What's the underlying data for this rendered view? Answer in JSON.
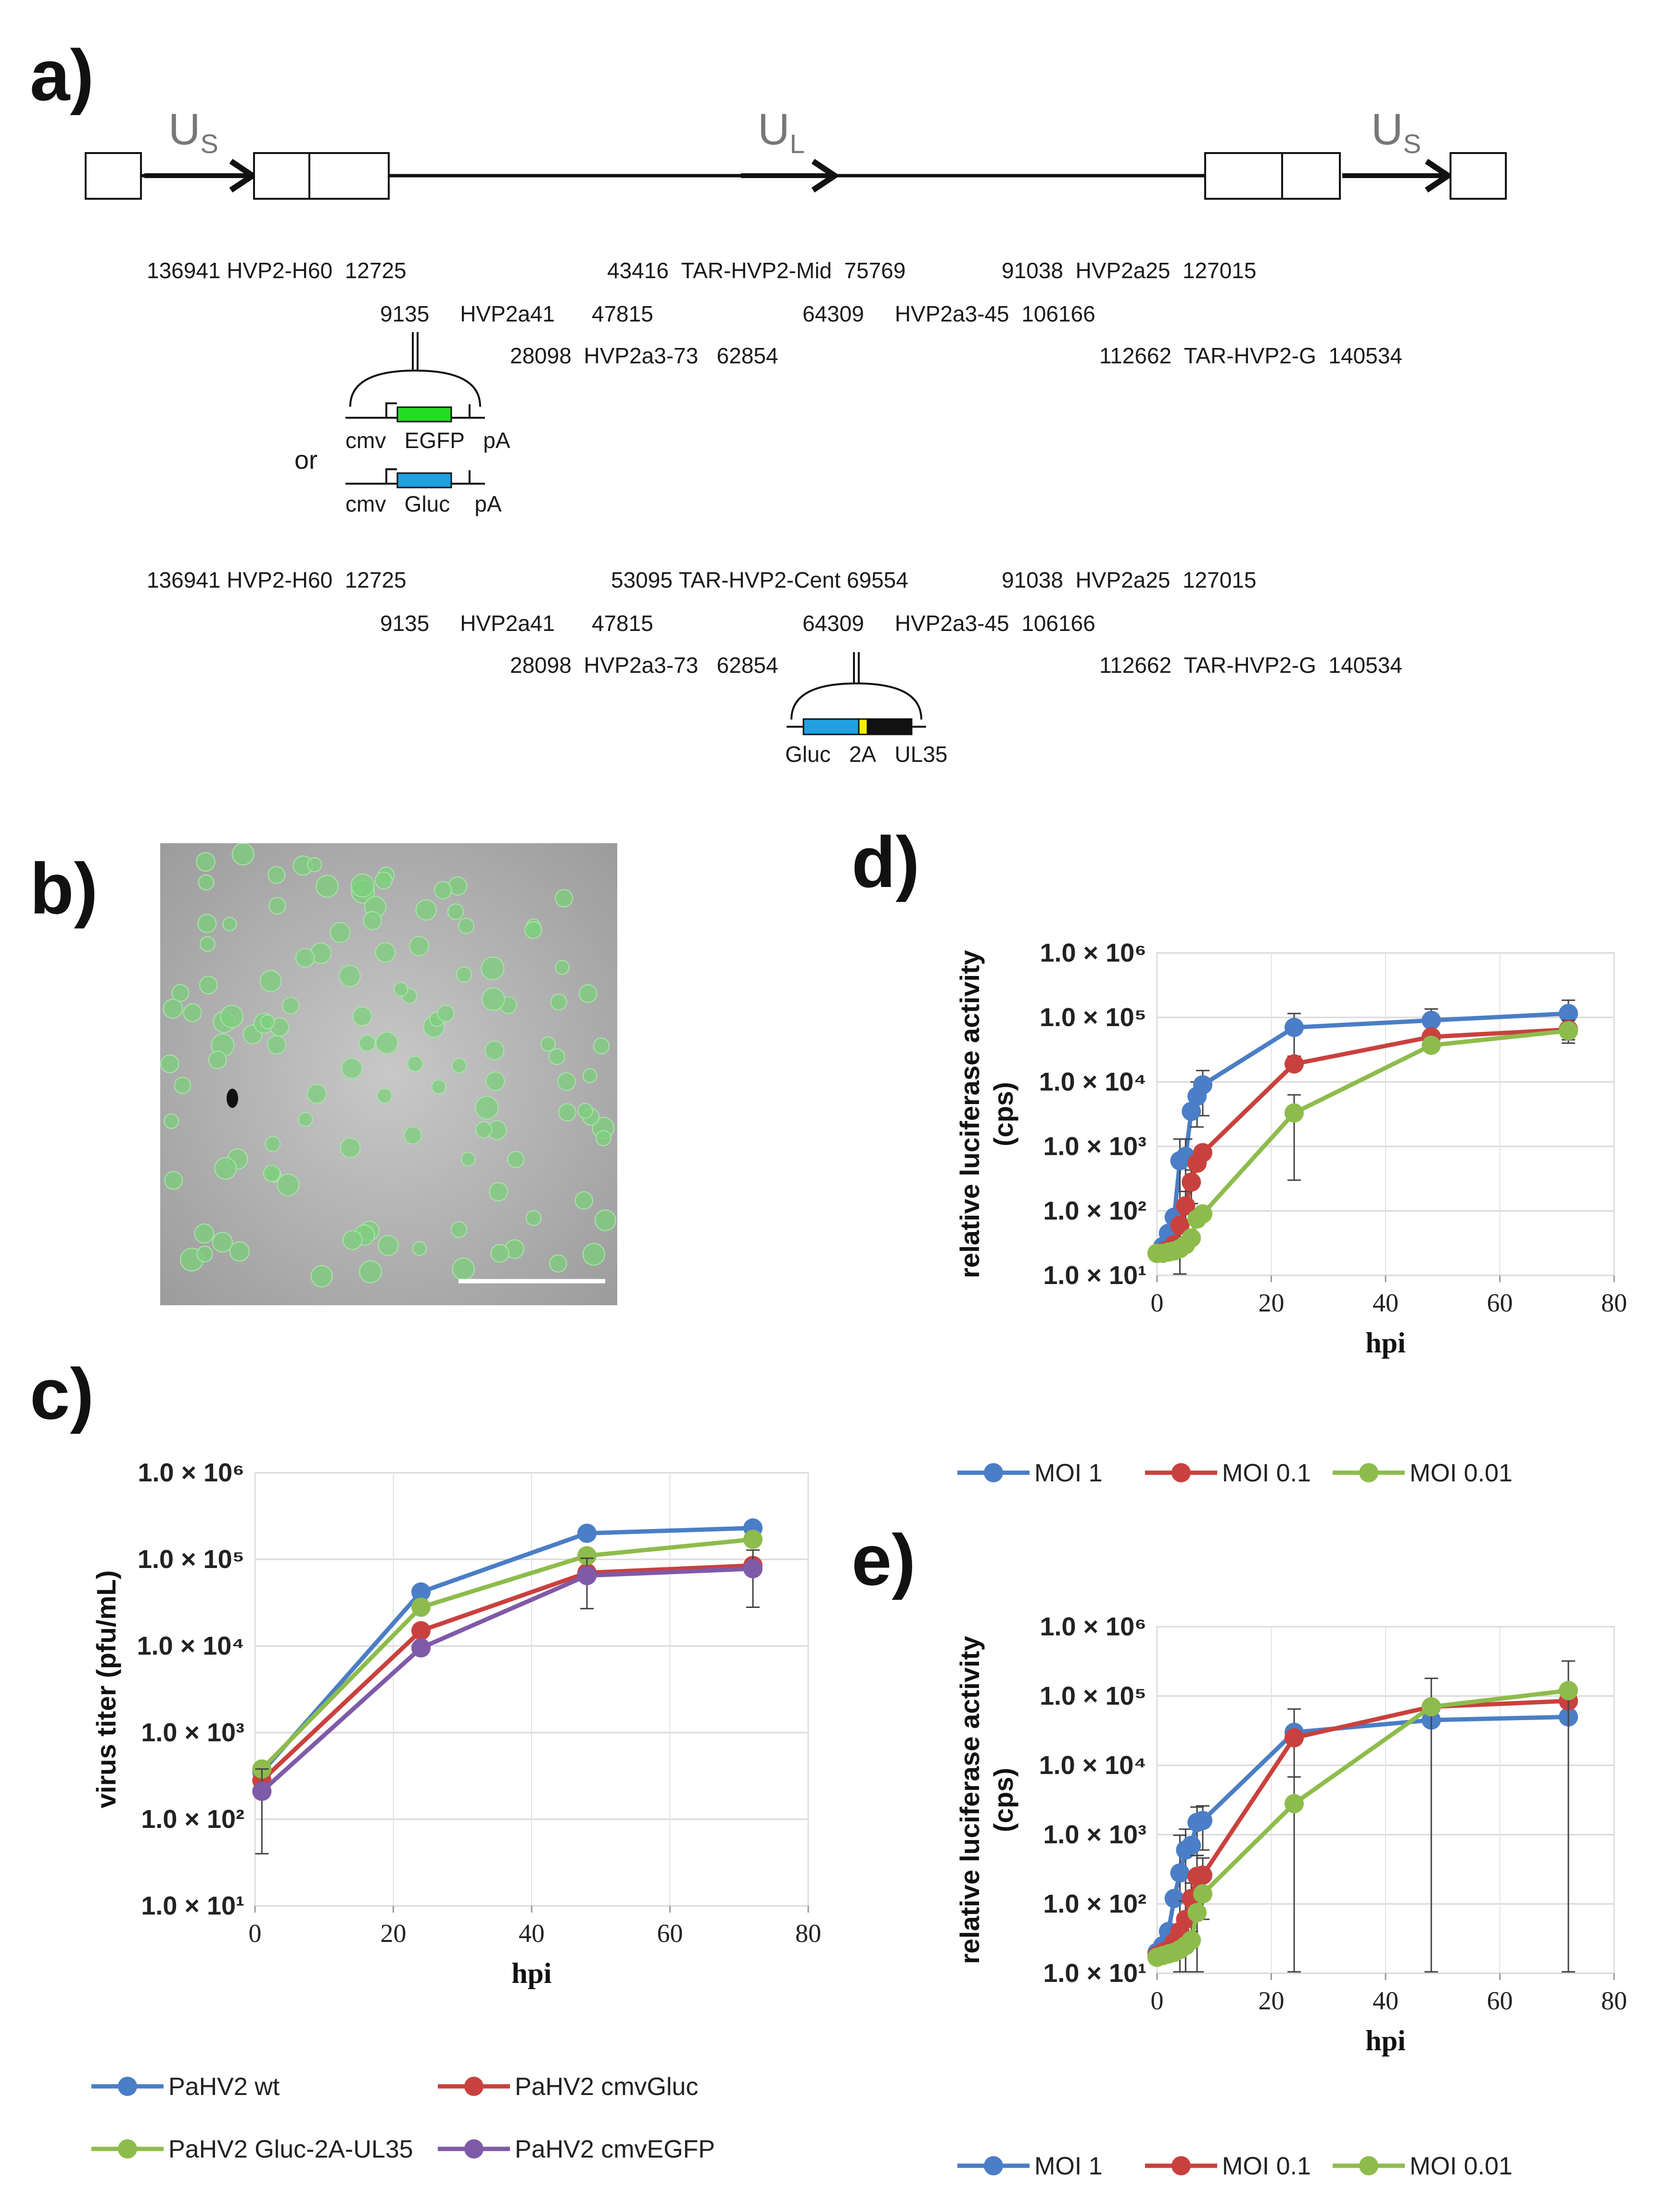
{
  "panels": {
    "a": "a)",
    "b": "b)",
    "c": "c)",
    "d": "d)",
    "e": "e)"
  },
  "genome": {
    "us_left": "U",
    "us_left_sub": "S",
    "ul": "U",
    "ul_sub": "L",
    "us_right": "U",
    "us_right_sub": "S",
    "set1": [
      {
        "start": "136941",
        "name": "HVP2-H60",
        "end": "12725"
      },
      {
        "start": "9135",
        "name": "HVP2a41",
        "end": "47815"
      },
      {
        "start": "28098",
        "name": "HVP2a3-73",
        "end": "62854"
      },
      {
        "start": "43416",
        "name": "TAR-HVP2-Mid",
        "end": "75769"
      },
      {
        "start": "64309",
        "name": "HVP2a3-45",
        "end": "106166"
      },
      {
        "start": "91038",
        "name": "HVP2a25",
        "end": "127015"
      },
      {
        "start": "112662",
        "name": "TAR-HVP2-G",
        "end": "140534"
      }
    ],
    "set2": [
      {
        "start": "136941",
        "name": "HVP2-H60",
        "end": "12725"
      },
      {
        "start": "9135",
        "name": "HVP2a41",
        "end": "47815"
      },
      {
        "start": "28098",
        "name": "HVP2a3-73",
        "end": "62854"
      },
      {
        "start": "53095",
        "name": "TAR-HVP2-Cent",
        "end": "69554"
      },
      {
        "start": "64309",
        "name": "HVP2a3-45",
        "end": "106166"
      },
      {
        "start": "91038",
        "name": "HVP2a25",
        "end": "127015"
      },
      {
        "start": "112662",
        "name": "TAR-HVP2-G",
        "end": "140534"
      }
    ],
    "cassette_egfp": [
      "cmv",
      "EGFP",
      "pA"
    ],
    "cassette_or": "or",
    "cassette_gluc": [
      "cmv",
      "Gluc",
      "pA"
    ],
    "cassette_ul35": [
      "Gluc",
      "2A",
      "UL35"
    ],
    "colors": {
      "egfp": "#22dd22",
      "gluc": "#1fa0e0",
      "twoA": "#f2f200",
      "ul35": "#111111"
    }
  },
  "charts": [
    {
      "id": "c",
      "type": "line",
      "yscale": "log",
      "xlabel": "hpi",
      "ylabel": "virus titer (pfu/mL)",
      "xlim": [
        0,
        80
      ],
      "xticks": [
        0,
        20,
        40,
        60,
        80
      ],
      "ylim": [
        10,
        1000000
      ],
      "yticks": [
        "1.0 × 10⁶",
        "1.0 × 10⁵",
        "1.0 × 10⁴",
        "1.0 × 10³",
        "1.0 × 10²",
        "1.0 × 10¹"
      ],
      "grid": true,
      "series": [
        {
          "name": "PaHV2 wt",
          "color": "#4a7ec6",
          "x": [
            1,
            24,
            48,
            72
          ],
          "y": [
            350,
            42000,
            200000,
            230000
          ],
          "err": [
            0,
            0,
            0,
            0
          ]
        },
        {
          "name": "PaHV2 cmvGluc",
          "color": "#c9413e",
          "x": [
            1,
            24,
            48,
            72
          ],
          "y": [
            280,
            15000,
            70000,
            85000
          ],
          "err": [
            0,
            0,
            0,
            0
          ]
        },
        {
          "name": "PaHV2 Gluc-2A-UL35",
          "color": "#8ebc4c",
          "x": [
            1,
            24,
            48,
            72
          ],
          "y": [
            380,
            28000,
            110000,
            170000
          ],
          "err": [
            0,
            0,
            0,
            0
          ]
        },
        {
          "name": "PaHV2 cmvEGFP",
          "color": "#7f5aa8",
          "x": [
            1,
            24,
            48,
            72
          ],
          "y": [
            210,
            9500,
            65000,
            78000
          ],
          "err": [
            170,
            0,
            38000,
            50000
          ]
        }
      ]
    },
    {
      "id": "d",
      "type": "line",
      "yscale": "log",
      "xlabel": "hpi",
      "ylabel": "relative luciferase activity (cps)",
      "xlim": [
        0,
        80
      ],
      "xticks": [
        0,
        20,
        40,
        60,
        80
      ],
      "ylim": [
        10,
        1000000
      ],
      "yticks": [
        "1.0 × 10⁶",
        "1.0 × 10⁵",
        "1.0 × 10⁴",
        "1.0 × 10³",
        "1.0 × 10²",
        "1.0 × 10¹"
      ],
      "grid": true,
      "series": [
        {
          "name": "MOI 1",
          "color": "#4a7ec6",
          "x": [
            0,
            1,
            2,
            3,
            4,
            5,
            6,
            7,
            8,
            24,
            48,
            72
          ],
          "y": [
            22,
            28,
            45,
            80,
            600,
            700,
            3500,
            6000,
            9000,
            70000,
            90000,
            115000
          ],
          "err": [
            0,
            0,
            0,
            0,
            700,
            600,
            0,
            4000,
            6000,
            45000,
            45000,
            70000
          ]
        },
        {
          "name": "MOI 0.1",
          "color": "#c9413e",
          "x": [
            0,
            1,
            2,
            3,
            4,
            5,
            6,
            7,
            8,
            24,
            48,
            72
          ],
          "y": [
            22,
            23,
            25,
            30,
            60,
            120,
            280,
            550,
            800,
            19000,
            50000,
            65000
          ],
          "err": [
            0,
            0,
            0,
            0,
            0,
            80,
            150,
            0,
            0,
            0,
            0,
            25000
          ]
        },
        {
          "name": "MOI 0.01",
          "color": "#8ebc4c",
          "x": [
            0,
            1,
            2,
            3,
            4,
            5,
            6,
            7,
            8,
            24,
            48,
            72
          ],
          "y": [
            22,
            22,
            23,
            24,
            26,
            30,
            38,
            75,
            90,
            3300,
            37000,
            62000
          ],
          "err": [
            0,
            0,
            0,
            0,
            0,
            0,
            0,
            0,
            0,
            3000,
            0,
            0
          ]
        }
      ]
    },
    {
      "id": "e",
      "type": "line",
      "yscale": "log",
      "xlabel": "hpi",
      "ylabel": "relative luciferase activity (cps)",
      "xlim": [
        0,
        80
      ],
      "xticks": [
        0,
        20,
        40,
        60,
        80
      ],
      "ylim": [
        10,
        1000000
      ],
      "yticks": [
        "1.0 × 10⁶",
        "1.0 × 10⁵",
        "1.0 × 10⁴",
        "1.0 × 10³",
        "1.0 × 10²",
        "1.0 × 10¹"
      ],
      "grid": true,
      "series": [
        {
          "name": "MOI 1",
          "color": "#4a7ec6",
          "x": [
            0,
            1,
            2,
            3,
            4,
            5,
            6,
            7,
            8,
            24,
            48,
            72
          ],
          "y": [
            20,
            25,
            40,
            120,
            280,
            600,
            700,
            1500,
            1600,
            30000,
            45000,
            50000
          ],
          "err": [
            0,
            0,
            0,
            0,
            700,
            600,
            0,
            1000,
            1000,
            35000,
            0,
            0
          ]
        },
        {
          "name": "MOI 0.1",
          "color": "#c9413e",
          "x": [
            0,
            1,
            2,
            3,
            4,
            5,
            6,
            7,
            8,
            24,
            48,
            72
          ],
          "y": [
            18,
            20,
            22,
            28,
            40,
            60,
            120,
            250,
            260,
            25000,
            70000,
            85000
          ],
          "err": [
            0,
            0,
            0,
            0,
            0,
            50,
            80,
            250,
            200,
            0,
            0,
            0
          ]
        },
        {
          "name": "MOI 0.01",
          "color": "#8ebc4c",
          "x": [
            0,
            1,
            2,
            3,
            4,
            5,
            6,
            7,
            8,
            24,
            48,
            72
          ],
          "y": [
            17,
            18,
            19,
            20,
            22,
            25,
            30,
            75,
            140,
            2800,
            70000,
            120000
          ],
          "err": [
            0,
            0,
            0,
            0,
            0,
            0,
            0,
            0,
            0,
            4000,
            110000,
            200000
          ]
        }
      ]
    }
  ],
  "legends": {
    "c": [
      "PaHV2 wt",
      "PaHV2 cmvGluc",
      "PaHV2 Gluc-2A-UL35",
      "PaHV2 cmvEGFP"
    ],
    "d": [
      "MOI 1",
      "MOI 0.1",
      "MOI 0.01"
    ],
    "e": [
      "MOI 1",
      "MOI 0.1",
      "MOI 0.01"
    ]
  }
}
